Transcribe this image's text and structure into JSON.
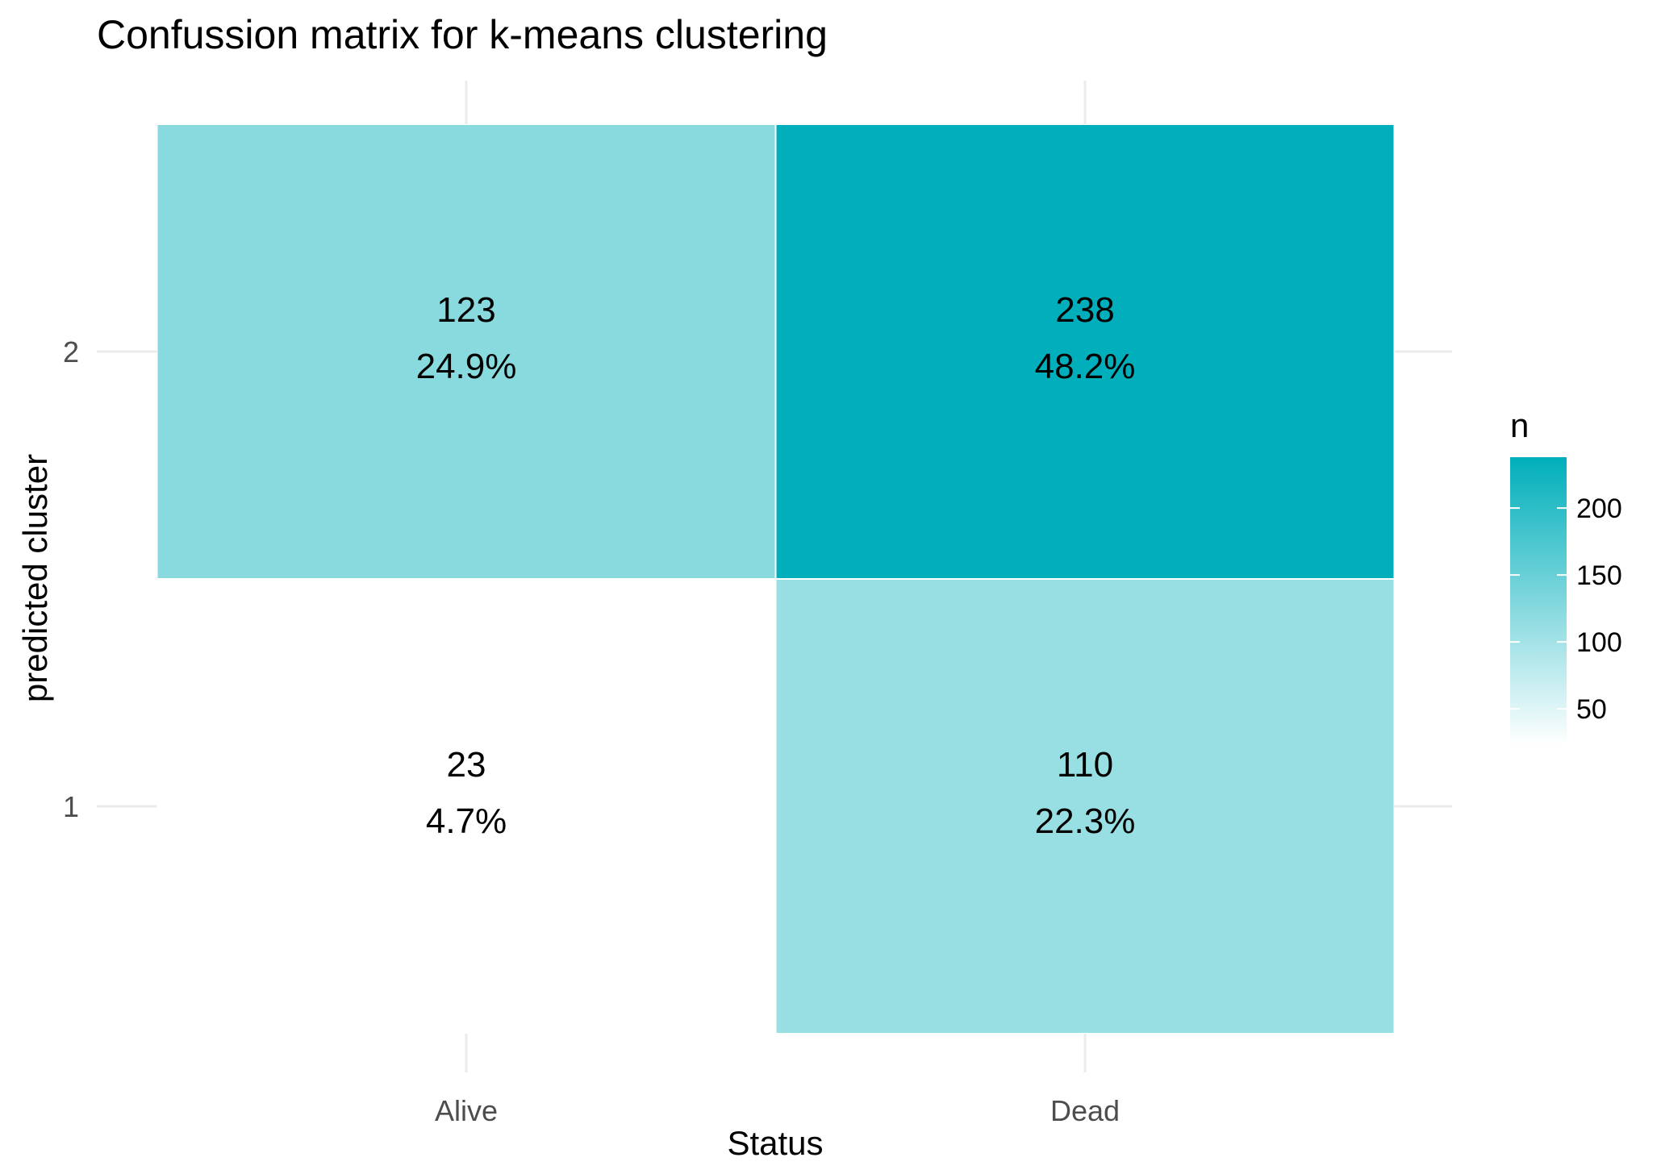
{
  "chart_data": {
    "type": "heatmap",
    "title": "Confussion matrix for k-means clustering",
    "xlabel": "Status",
    "ylabel": "predicted cluster",
    "x_categories": [
      "Alive",
      "Dead"
    ],
    "y_categories": [
      "1",
      "2"
    ],
    "cells": [
      {
        "x": "Alive",
        "y": "2",
        "n": 123,
        "pct": "24.9%"
      },
      {
        "x": "Dead",
        "y": "2",
        "n": 238,
        "pct": "48.2%"
      },
      {
        "x": "Alive",
        "y": "1",
        "n": 23,
        "pct": "4.7%"
      },
      {
        "x": "Dead",
        "y": "1",
        "n": 110,
        "pct": "22.3%"
      }
    ],
    "legend": {
      "title": "n",
      "ticks": [
        50,
        100,
        150,
        200
      ],
      "range": [
        23,
        238
      ],
      "low_color": "#ffffff",
      "high_color": "#00afbb",
      "position": "right"
    },
    "grid": true
  }
}
